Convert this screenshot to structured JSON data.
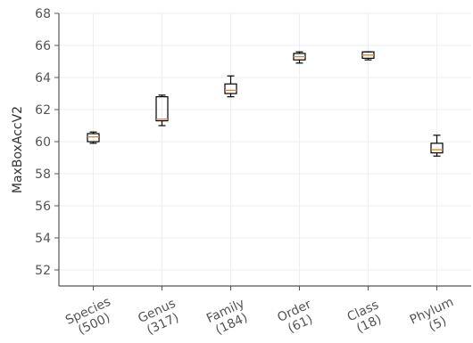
{
  "chart_data": {
    "type": "box",
    "title": "",
    "xlabel": "",
    "ylabel": "MaxBoxAccV2",
    "ylim": [
      51,
      68
    ],
    "yticks": [
      52,
      54,
      56,
      58,
      60,
      62,
      64,
      66,
      68
    ],
    "grid": true,
    "categories": [
      {
        "line1": "Species",
        "line2": "(500)"
      },
      {
        "line1": "Genus",
        "line2": "(317)"
      },
      {
        "line1": "Family",
        "line2": "(184)"
      },
      {
        "line1": "Order",
        "line2": "(61)"
      },
      {
        "line1": "Class",
        "line2": "(18)"
      },
      {
        "line1": "Phylum",
        "line2": "(5)"
      }
    ],
    "boxes": [
      {
        "min": 59.9,
        "q1": 60.0,
        "median": 60.3,
        "q3": 60.5,
        "max": 60.6
      },
      {
        "min": 61.0,
        "q1": 61.3,
        "median": 61.4,
        "q3": 62.8,
        "max": 62.9
      },
      {
        "min": 62.8,
        "q1": 63.0,
        "median": 63.2,
        "q3": 63.6,
        "max": 64.1
      },
      {
        "min": 64.9,
        "q1": 65.1,
        "median": 65.3,
        "q3": 65.5,
        "max": 65.6
      },
      {
        "min": 65.1,
        "q1": 65.2,
        "median": 65.4,
        "q3": 65.6,
        "max": 65.6
      },
      {
        "min": 59.1,
        "q1": 59.3,
        "median": 59.5,
        "q3": 59.9,
        "max": 60.4
      }
    ],
    "colors": {
      "box": "#000000",
      "median": "#ff7f0e",
      "axis": "#555555",
      "grid": "#eeeeee"
    }
  }
}
